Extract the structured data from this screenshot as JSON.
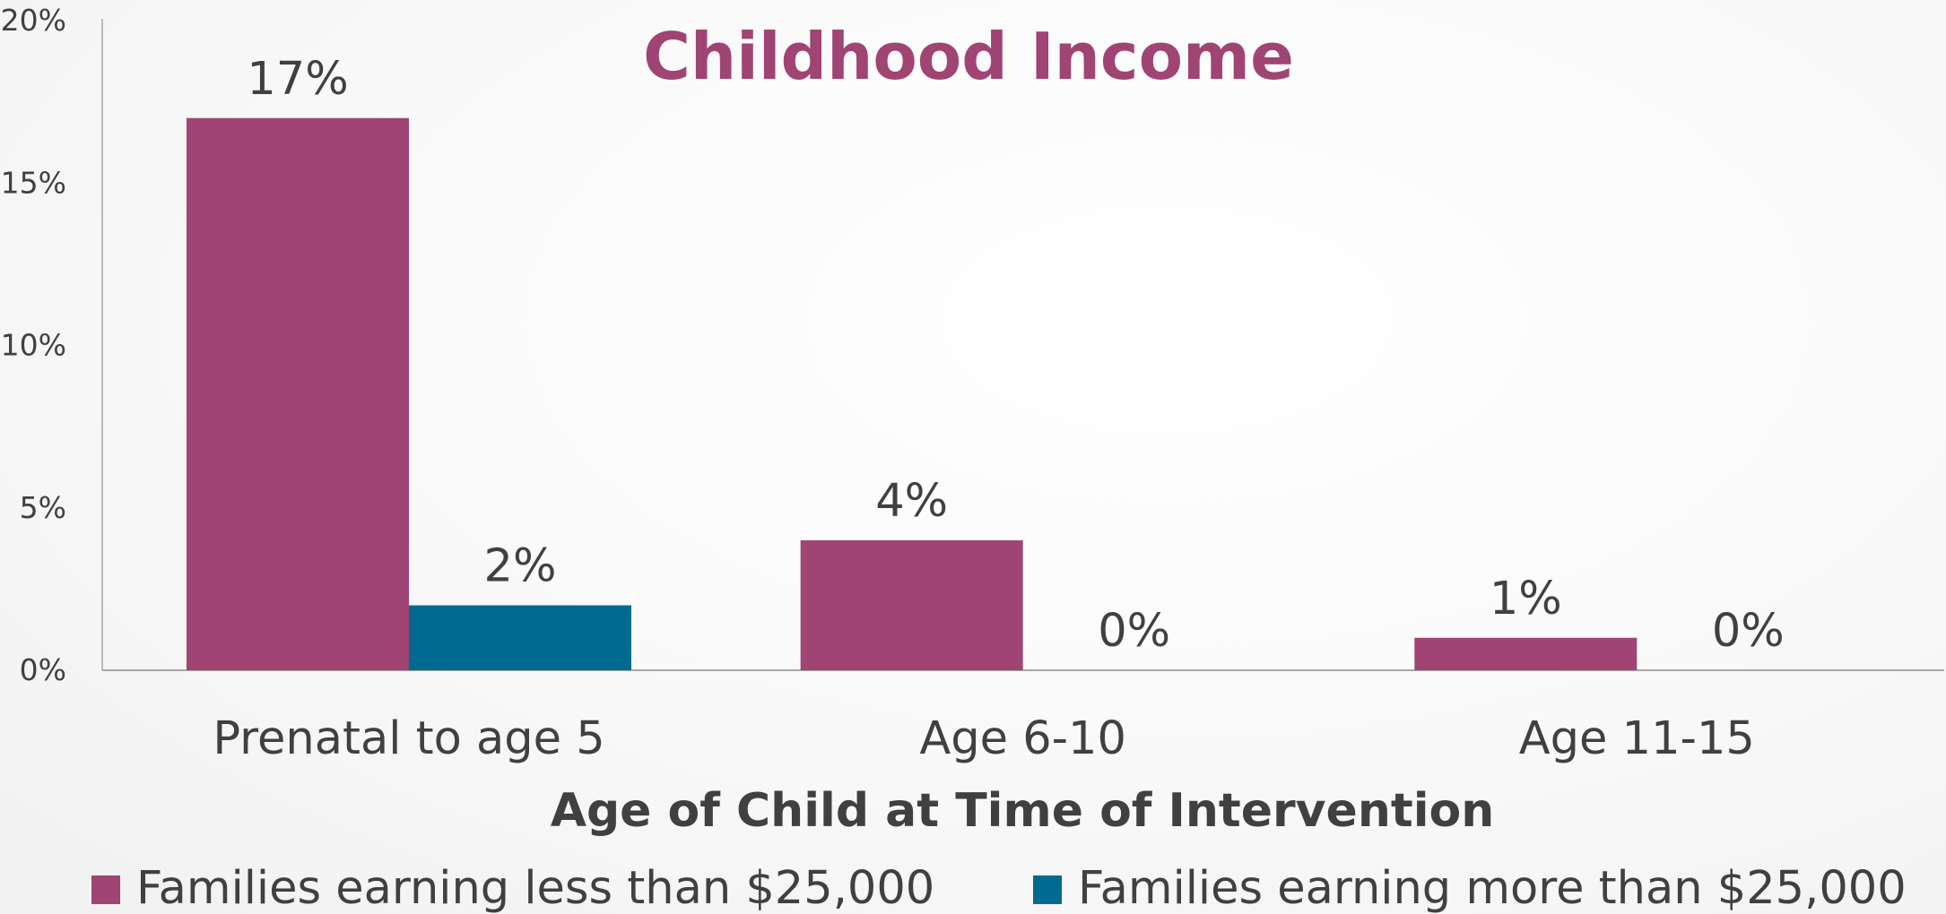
{
  "chart_data": {
    "type": "bar",
    "title": "Childhood Income",
    "xlabel": "Age of Child at Time of Intervention",
    "ylabel": "",
    "categories": [
      "Prenatal to age 5",
      "Age 6-10",
      "Age 11-15"
    ],
    "series": [
      {
        "name": "Families earning less than $25,000",
        "color": "#a04474",
        "values": [
          17,
          4,
          1
        ],
        "labels": [
          "17%",
          "4%",
          "1%"
        ]
      },
      {
        "name": "Families earning more than $25,000",
        "color": "#006a90",
        "values": [
          2,
          0,
          0
        ],
        "labels": [
          "2%",
          "0%",
          "0%"
        ]
      }
    ],
    "ylim": [
      0,
      20
    ],
    "yticks": [
      0,
      5,
      10,
      15,
      20
    ],
    "ytick_labels": [
      "0%",
      "5%",
      "10%",
      "15%",
      "20%"
    ],
    "grid": false,
    "legend_position": "bottom",
    "colors": {
      "title": "#a04474",
      "text": "#404040",
      "axis": "#a6a6a6"
    }
  }
}
